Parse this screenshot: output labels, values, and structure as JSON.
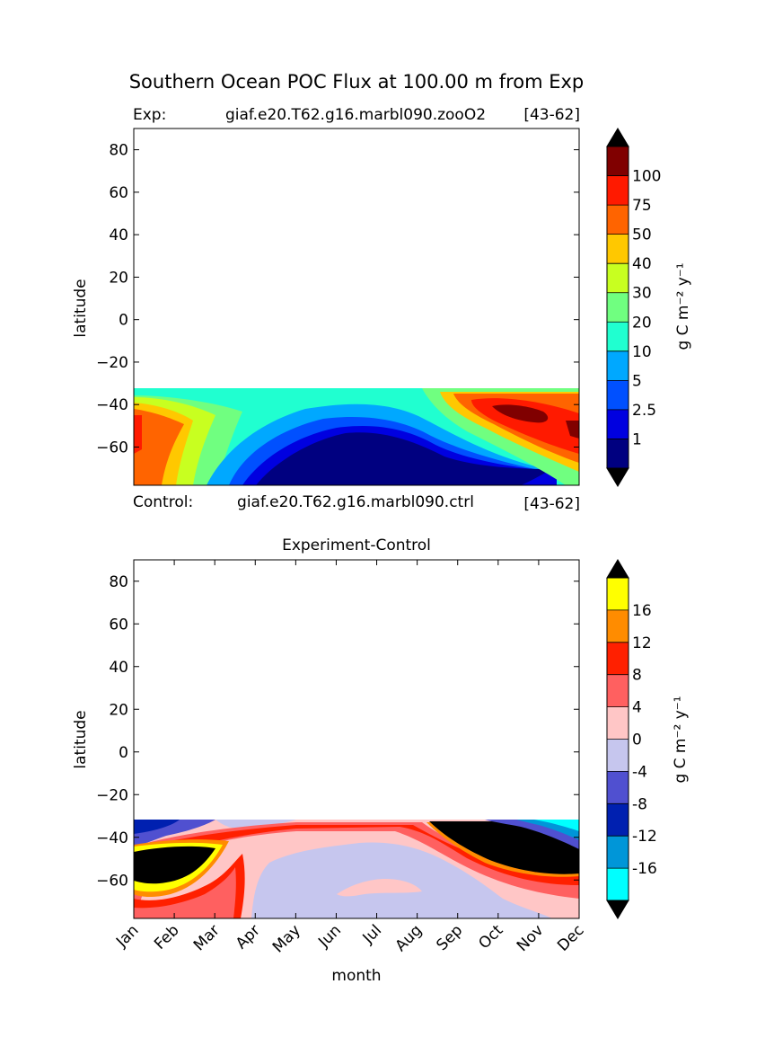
{
  "suptitle": "Southern Ocean POC Flux at 100.00 m from Exp",
  "top_panel": {
    "left_label": "Exp:",
    "case_label": "giaf.e20.T62.g16.marbl090.zooO2",
    "years_label": "[43-62]",
    "ylabel": "latitude"
  },
  "control_line": {
    "left_label": "Control:",
    "case_label": "giaf.e20.T62.g16.marbl090.ctrl",
    "years_label": "[43-62]"
  },
  "bottom_panel": {
    "title": "Experiment-Control",
    "ylabel": "latitude",
    "xlabel": "month"
  },
  "colorbar_top": {
    "label": "g C m⁻² y⁻¹",
    "tick_labels": [
      "1",
      "2.5",
      "5",
      "10",
      "20",
      "30",
      "40",
      "50",
      "75",
      "100"
    ],
    "colors": [
      "#000080",
      "#0000e0",
      "#0050ff",
      "#00a8ff",
      "#20ffd0",
      "#70ff80",
      "#c8ff20",
      "#ffc800",
      "#ff6400",
      "#ff1a00",
      "#800000"
    ],
    "extend_color": "#000000"
  },
  "colorbar_bottom": {
    "label": "g C m⁻² y⁻¹",
    "tick_labels": [
      "-16",
      "-12",
      "-8",
      "-4",
      "0",
      "4",
      "8",
      "12",
      "16"
    ],
    "colors": [
      "#00ffff",
      "#0096d8",
      "#0020b0",
      "#5050d0",
      "#c6c6ee",
      "#ffc6c6",
      "#ff6060",
      "#ff2000",
      "#ff8c00",
      "#ffff00"
    ],
    "extend_color": "#000000"
  },
  "chart_data": [
    {
      "type": "heatmap",
      "title": "Exp: giaf.e20.T62.g16.marbl090.zooO2 [43-62]",
      "xlabel": "",
      "ylabel": "latitude",
      "x": [
        "Jan",
        "Feb",
        "Mar",
        "Apr",
        "May",
        "Jun",
        "Jul",
        "Aug",
        "Sep",
        "Oct",
        "Nov",
        "Dec"
      ],
      "xlim": [
        0,
        11
      ],
      "ylim": [
        -78,
        90
      ],
      "yticks": [
        -60,
        -40,
        -20,
        0,
        20,
        40,
        60,
        80
      ],
      "y_data_range": [
        -78,
        -33
      ],
      "levels": [
        1,
        2.5,
        5,
        10,
        20,
        30,
        40,
        50,
        75,
        100
      ],
      "colorbar_label": "g C m-2 y-1",
      "approx_values_by_month": {
        "lat_-40": [
          35,
          20,
          12,
          10,
          8,
          8,
          10,
          20,
          45,
          75,
          80,
          70
        ],
        "lat_-50": [
          55,
          35,
          20,
          10,
          5,
          3,
          4,
          8,
          25,
          80,
          100,
          85
        ],
        "lat_-60": [
          55,
          40,
          20,
          5,
          2,
          0.5,
          0.5,
          2,
          8,
          40,
          75,
          70
        ],
        "lat_-70": [
          45,
          30,
          20,
          5,
          0.5,
          0.5,
          0.5,
          0.5,
          1,
          2.5,
          10,
          30
        ]
      }
    },
    {
      "type": "heatmap",
      "title": "Experiment-Control",
      "xlabel": "month",
      "ylabel": "latitude",
      "x": [
        "Jan",
        "Feb",
        "Mar",
        "Apr",
        "May",
        "Jun",
        "Jul",
        "Aug",
        "Sep",
        "Oct",
        "Nov",
        "Dec"
      ],
      "xlim": [
        0,
        11
      ],
      "ylim": [
        -78,
        90
      ],
      "yticks": [
        -60,
        -40,
        -20,
        0,
        20,
        40,
        60,
        80
      ],
      "y_data_range": [
        -78,
        -33
      ],
      "levels": [
        -16,
        -12,
        -8,
        -4,
        0,
        4,
        8,
        12,
        16
      ],
      "colorbar_label": "g C m-2 y-1",
      "approx_values_by_month": {
        "lat_-40": [
          -6,
          4,
          8,
          8,
          8,
          8,
          6,
          6,
          18,
          18,
          16,
          8
        ],
        "lat_-50": [
          18,
          18,
          12,
          6,
          2,
          -2,
          -2,
          2,
          10,
          18,
          20,
          20
        ],
        "lat_-60": [
          18,
          10,
          8,
          4,
          -2,
          -2,
          -2,
          2,
          4,
          8,
          12,
          18
        ],
        "lat_-70": [
          10,
          8,
          8,
          8,
          -2,
          -2,
          2,
          2,
          2,
          2,
          2,
          2
        ]
      }
    }
  ]
}
